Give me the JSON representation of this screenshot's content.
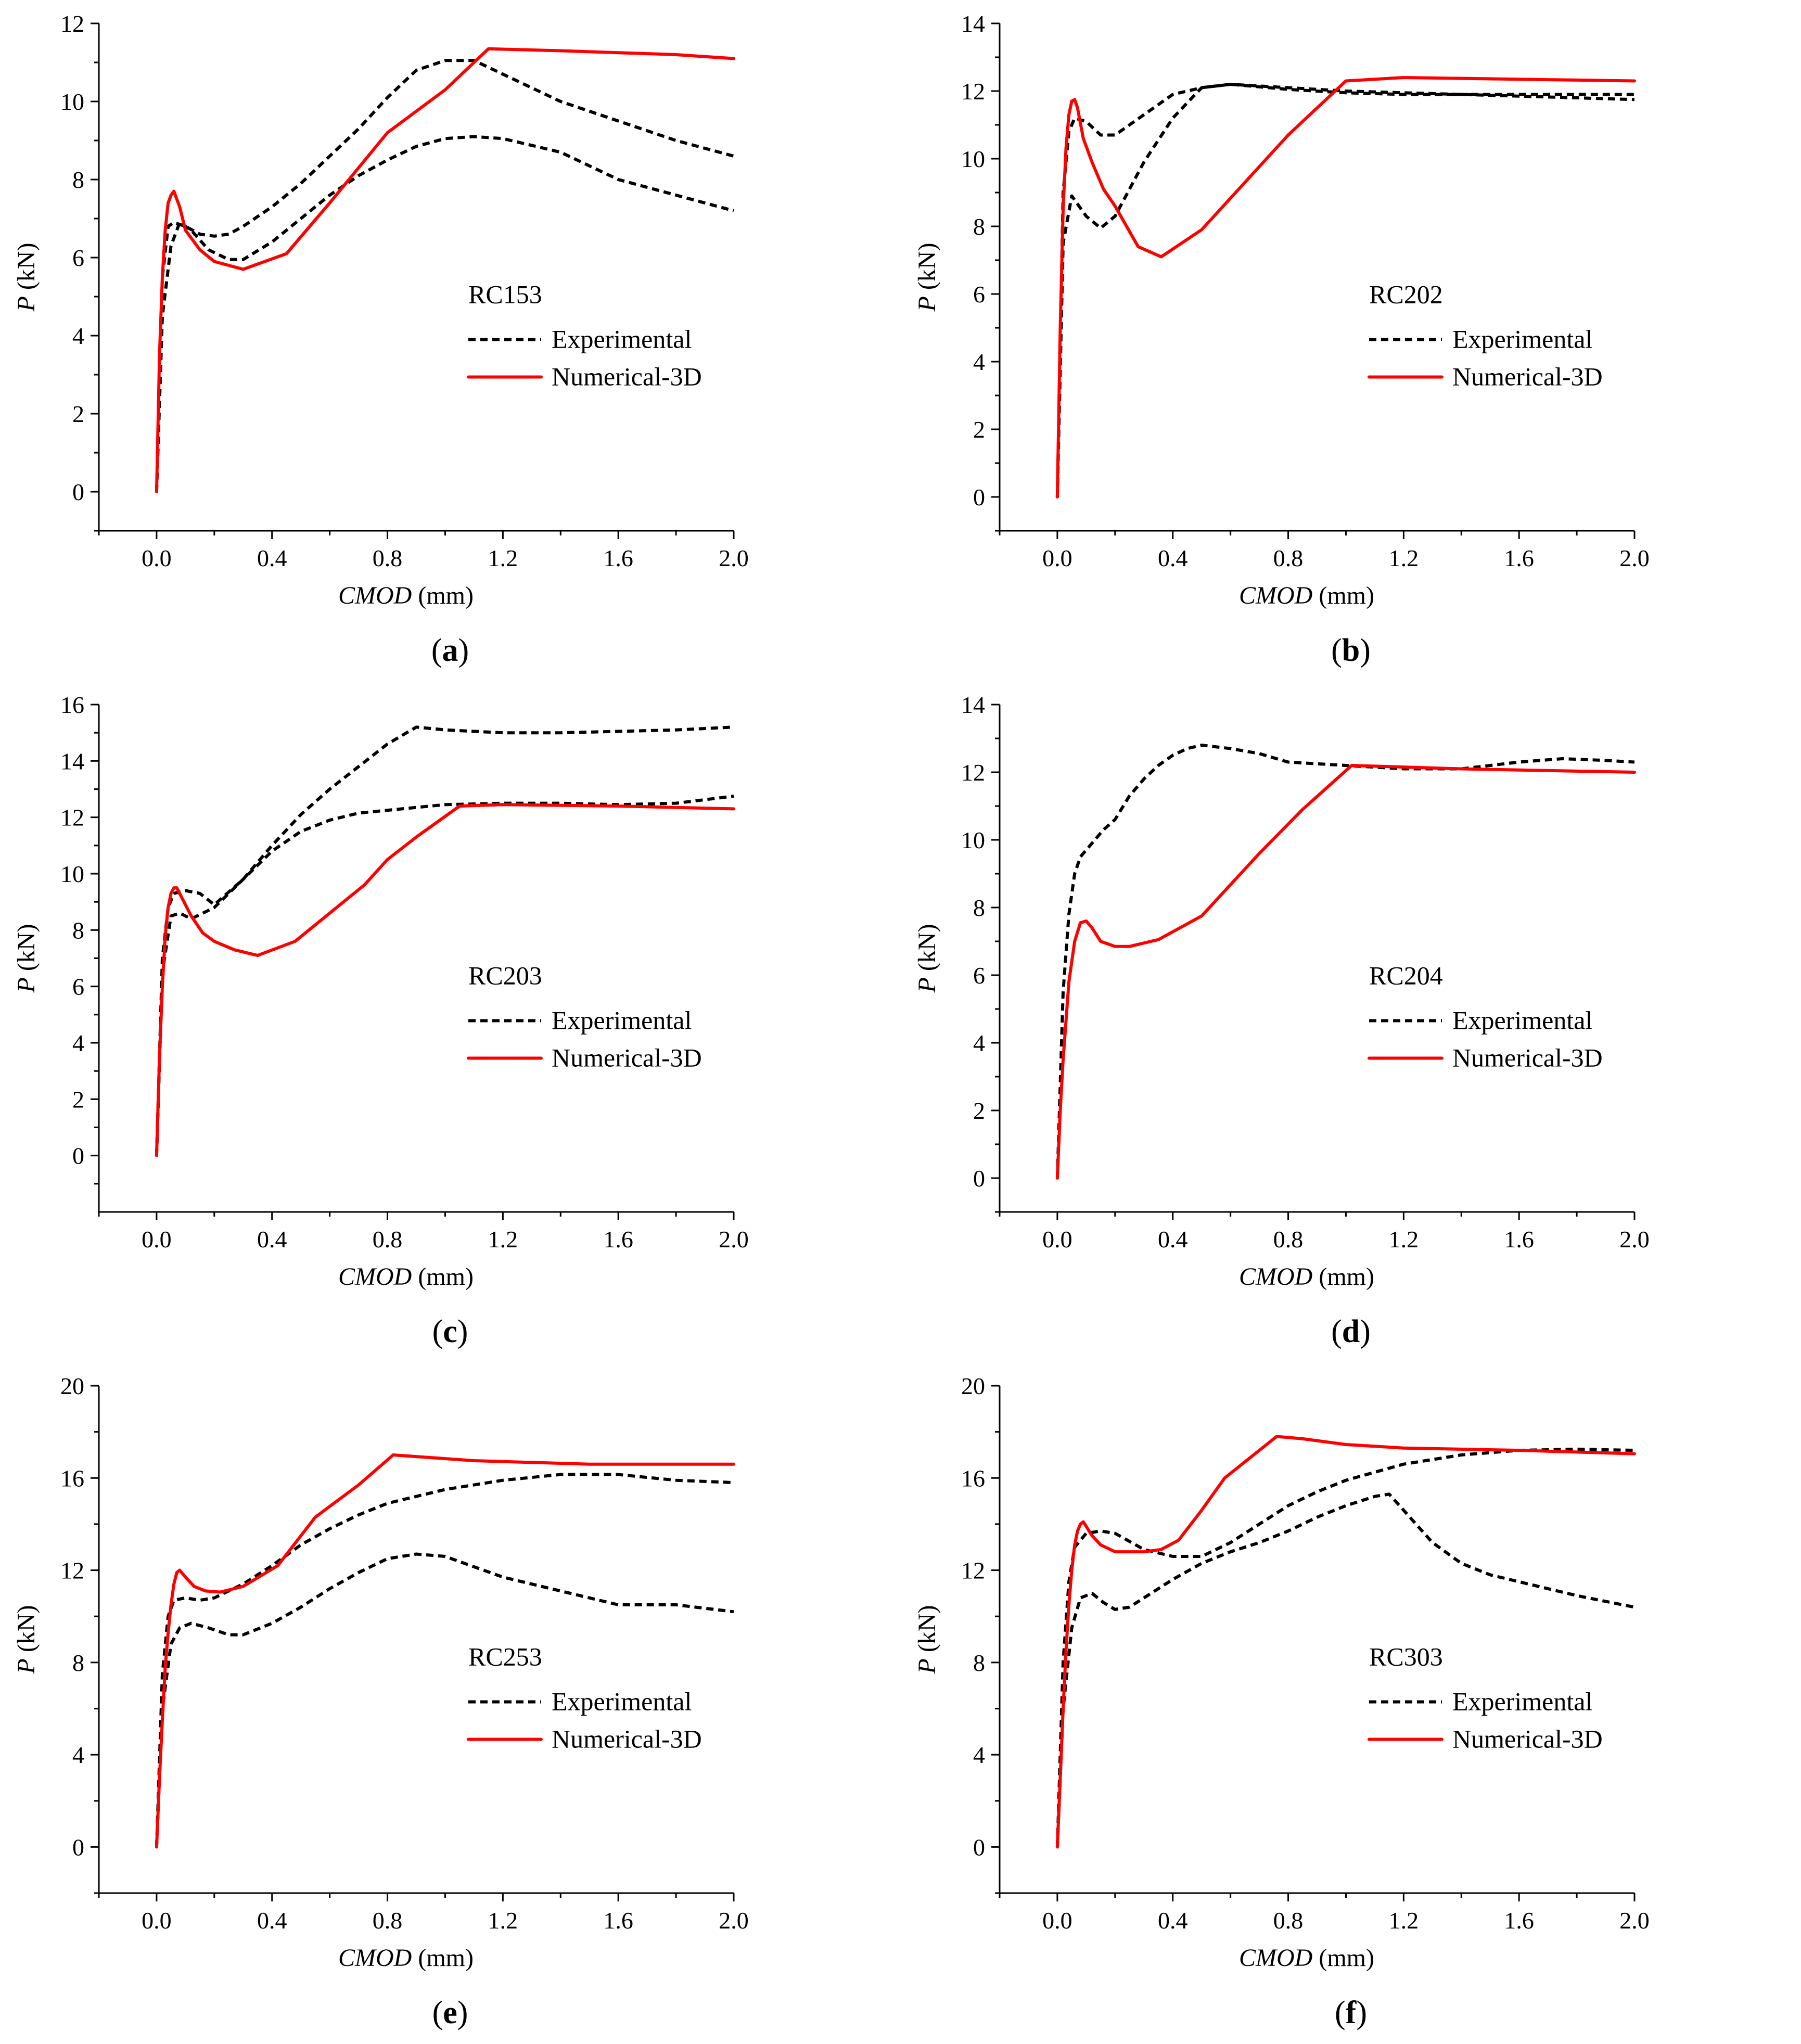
{
  "common": {
    "xlabel_italic": "CMOD",
    "xlabel_unit": " (mm)",
    "ylabel_italic": "P",
    "ylabel_unit": " (kN)",
    "legend_experimental": "Experimental",
    "legend_numerical": "Numerical-3D",
    "x_ticks": [
      "0.0",
      "0.4",
      "0.8",
      "1.2",
      "1.6",
      "2.0"
    ],
    "colors": {
      "experimental": "#000000",
      "numerical": "#ff0000"
    }
  },
  "panels": [
    {
      "caption_open": "(",
      "caption_letter": "a",
      "caption_close": ")"
    },
    {
      "caption_open": "(",
      "caption_letter": "b",
      "caption_close": ")"
    },
    {
      "caption_open": "(",
      "caption_letter": "c",
      "caption_close": ")"
    },
    {
      "caption_open": "(",
      "caption_letter": "d",
      "caption_close": ")"
    },
    {
      "caption_open": "(",
      "caption_letter": "e",
      "caption_close": ")"
    },
    {
      "caption_open": "(",
      "caption_letter": "f",
      "caption_close": ")"
    }
  ],
  "chart_data": [
    {
      "type": "line",
      "title": "RC153",
      "xlabel": "CMOD (mm)",
      "ylabel": "P (kN)",
      "xlim": [
        -0.2,
        2.0
      ],
      "ylim": [
        -1,
        12
      ],
      "y_ticks": [
        0,
        2,
        4,
        6,
        8,
        10,
        12
      ],
      "legend_placement": "center-right",
      "series": [
        {
          "name": "Experimental",
          "style": "dashed",
          "color": "#000000",
          "x": [
            0,
            0.02,
            0.04,
            0.06,
            0.1,
            0.15,
            0.2,
            0.25,
            0.3,
            0.4,
            0.5,
            0.6,
            0.7,
            0.8,
            0.9,
            1.0,
            1.1,
            1.2,
            1.4,
            1.6,
            1.8,
            2.0
          ],
          "y": [
            0,
            5.5,
            6.8,
            6.9,
            6.8,
            6.6,
            6.55,
            6.6,
            6.8,
            7.3,
            7.9,
            8.6,
            9.3,
            10.1,
            10.8,
            11.05,
            11.05,
            10.7,
            10.0,
            9.5,
            9.0,
            8.6
          ]
        },
        {
          "name": "Experimental",
          "style": "dashed",
          "color": "#000000",
          "x": [
            0,
            0.02,
            0.05,
            0.08,
            0.12,
            0.18,
            0.25,
            0.3,
            0.4,
            0.5,
            0.6,
            0.7,
            0.8,
            0.9,
            1.0,
            1.1,
            1.2,
            1.4,
            1.6,
            1.8,
            2.0
          ],
          "y": [
            0,
            4.5,
            6.3,
            6.9,
            6.7,
            6.2,
            5.95,
            5.95,
            6.4,
            7.0,
            7.6,
            8.1,
            8.5,
            8.85,
            9.05,
            9.1,
            9.05,
            8.7,
            8.0,
            7.6,
            7.2
          ]
        },
        {
          "name": "Numerical-3D",
          "style": "solid",
          "color": "#ff0000",
          "x": [
            0,
            0.01,
            0.02,
            0.03,
            0.04,
            0.05,
            0.06,
            0.07,
            0.08,
            0.1,
            0.15,
            0.2,
            0.3,
            0.45,
            0.6,
            0.8,
            1.0,
            1.15,
            1.4,
            1.8,
            2.0
          ],
          "y": [
            0,
            3.5,
            5.5,
            6.7,
            7.4,
            7.6,
            7.7,
            7.5,
            7.3,
            6.7,
            6.2,
            5.9,
            5.7,
            6.1,
            7.4,
            9.2,
            10.3,
            11.35,
            11.3,
            11.2,
            11.1
          ]
        }
      ]
    },
    {
      "type": "line",
      "title": "RC202",
      "xlabel": "CMOD (mm)",
      "ylabel": "P (kN)",
      "xlim": [
        -0.2,
        2.0
      ],
      "ylim": [
        -1,
        14
      ],
      "y_ticks": [
        0,
        2,
        4,
        6,
        8,
        10,
        12,
        14
      ],
      "legend_placement": "center-right",
      "series": [
        {
          "name": "Experimental",
          "style": "dashed",
          "color": "#000000",
          "x": [
            0,
            0.02,
            0.04,
            0.06,
            0.1,
            0.15,
            0.2,
            0.3,
            0.4,
            0.5,
            0.6,
            0.8,
            1.0,
            1.2,
            1.4,
            1.6,
            1.8,
            2.0
          ],
          "y": [
            0,
            9.0,
            10.8,
            11.2,
            11.1,
            10.7,
            10.7,
            11.3,
            11.9,
            12.1,
            12.2,
            12.1,
            12.0,
            11.95,
            11.9,
            11.85,
            11.8,
            11.75
          ]
        },
        {
          "name": "Experimental",
          "style": "dashed",
          "color": "#000000",
          "x": [
            0,
            0.02,
            0.05,
            0.1,
            0.15,
            0.2,
            0.3,
            0.4,
            0.5,
            0.6,
            0.8,
            1.0,
            1.2,
            1.4,
            1.6,
            1.8,
            2.0
          ],
          "y": [
            0,
            7.5,
            8.9,
            8.3,
            7.95,
            8.3,
            9.9,
            11.2,
            12.1,
            12.2,
            12.05,
            11.95,
            11.9,
            11.9,
            11.9,
            11.9,
            11.9
          ]
        },
        {
          "name": "Numerical-3D",
          "style": "solid",
          "color": "#ff0000",
          "x": [
            0,
            0.01,
            0.02,
            0.03,
            0.04,
            0.05,
            0.06,
            0.07,
            0.09,
            0.12,
            0.16,
            0.2,
            0.28,
            0.36,
            0.5,
            0.65,
            0.8,
            1.0,
            1.2,
            1.6,
            2.0
          ],
          "y": [
            0,
            5.0,
            8.5,
            10.3,
            11.3,
            11.7,
            11.75,
            11.5,
            10.6,
            9.9,
            9.1,
            8.6,
            7.4,
            7.1,
            7.9,
            9.3,
            10.7,
            12.3,
            12.4,
            12.35,
            12.3
          ]
        }
      ]
    },
    {
      "type": "line",
      "title": "RC203",
      "xlabel": "CMOD (mm)",
      "ylabel": "P (kN)",
      "xlim": [
        -0.2,
        2.0
      ],
      "ylim": [
        -2,
        16
      ],
      "y_ticks": [
        0,
        2,
        4,
        6,
        8,
        10,
        12,
        14,
        16
      ],
      "legend_placement": "center-right",
      "series": [
        {
          "name": "Experimental",
          "style": "dashed",
          "color": "#000000",
          "x": [
            0,
            0.02,
            0.04,
            0.06,
            0.1,
            0.15,
            0.2,
            0.3,
            0.4,
            0.5,
            0.6,
            0.7,
            0.8,
            0.9,
            1.0,
            1.2,
            1.4,
            1.6,
            1.8,
            2.0
          ],
          "y": [
            0,
            7.0,
            8.8,
            9.3,
            9.4,
            9.3,
            8.9,
            9.8,
            11.0,
            12.1,
            13.0,
            13.8,
            14.6,
            15.2,
            15.1,
            15.0,
            15.0,
            15.05,
            15.1,
            15.2
          ]
        },
        {
          "name": "Experimental",
          "style": "dashed",
          "color": "#000000",
          "x": [
            0,
            0.02,
            0.05,
            0.08,
            0.12,
            0.2,
            0.3,
            0.4,
            0.5,
            0.6,
            0.7,
            0.8,
            0.9,
            1.0,
            1.2,
            1.4,
            1.6,
            1.8,
            2.0
          ],
          "y": [
            0,
            6.5,
            8.5,
            8.6,
            8.4,
            8.8,
            9.8,
            10.8,
            11.5,
            11.9,
            12.15,
            12.25,
            12.35,
            12.45,
            12.5,
            12.5,
            12.45,
            12.5,
            12.75
          ]
        },
        {
          "name": "Numerical-3D",
          "style": "solid",
          "color": "#ff0000",
          "x": [
            0,
            0.01,
            0.02,
            0.03,
            0.04,
            0.05,
            0.06,
            0.07,
            0.09,
            0.12,
            0.16,
            0.2,
            0.27,
            0.35,
            0.48,
            0.6,
            0.72,
            0.8,
            0.9,
            1.05,
            1.2,
            1.6,
            2.0
          ],
          "y": [
            0,
            3.5,
            6.0,
            7.8,
            8.8,
            9.3,
            9.5,
            9.5,
            9.1,
            8.5,
            7.9,
            7.6,
            7.3,
            7.1,
            7.6,
            8.6,
            9.6,
            10.5,
            11.3,
            12.4,
            12.45,
            12.4,
            12.3
          ]
        }
      ]
    },
    {
      "type": "line",
      "title": "RC204",
      "xlabel": "CMOD (mm)",
      "ylabel": "P (kN)",
      "xlim": [
        -0.2,
        2.0
      ],
      "ylim": [
        -1,
        14
      ],
      "y_ticks": [
        0,
        2,
        4,
        6,
        8,
        10,
        12,
        14
      ],
      "legend_placement": "center-right",
      "series": [
        {
          "name": "Experimental",
          "style": "dashed",
          "color": "#000000",
          "x": [
            0,
            0.02,
            0.04,
            0.06,
            0.08,
            0.12,
            0.16,
            0.2,
            0.25,
            0.3,
            0.35,
            0.4,
            0.45,
            0.5,
            0.6,
            0.7,
            0.8,
            1.0,
            1.2,
            1.4,
            1.6,
            1.75,
            1.9,
            2.0
          ],
          "y": [
            0,
            5.5,
            7.8,
            9.0,
            9.5,
            9.9,
            10.3,
            10.6,
            11.3,
            11.8,
            12.2,
            12.5,
            12.7,
            12.8,
            12.7,
            12.55,
            12.3,
            12.2,
            12.1,
            12.1,
            12.3,
            12.4,
            12.35,
            12.3
          ]
        },
        {
          "name": "Numerical-3D",
          "style": "solid",
          "color": "#ff0000",
          "x": [
            0,
            0.01,
            0.02,
            0.04,
            0.06,
            0.08,
            0.1,
            0.12,
            0.15,
            0.2,
            0.25,
            0.35,
            0.5,
            0.7,
            0.85,
            1.02,
            1.4,
            2.0
          ],
          "y": [
            0,
            2.0,
            3.5,
            5.8,
            7.0,
            7.55,
            7.6,
            7.4,
            7.0,
            6.85,
            6.85,
            7.05,
            7.75,
            9.6,
            10.9,
            12.2,
            12.1,
            12.0
          ]
        }
      ]
    },
    {
      "type": "line",
      "title": "RC253",
      "xlabel": "CMOD (mm)",
      "ylabel": "P (kN)",
      "xlim": [
        -0.2,
        2.0
      ],
      "ylim": [
        -2,
        20
      ],
      "y_ticks": [
        0,
        4,
        8,
        12,
        16,
        20
      ],
      "legend_placement": "center-right",
      "series": [
        {
          "name": "Experimental",
          "style": "dashed",
          "color": "#000000",
          "x": [
            0,
            0.02,
            0.04,
            0.06,
            0.1,
            0.15,
            0.2,
            0.3,
            0.4,
            0.5,
            0.6,
            0.7,
            0.8,
            1.0,
            1.2,
            1.4,
            1.6,
            1.8,
            2.0
          ],
          "y": [
            0,
            7.5,
            10.0,
            10.7,
            10.8,
            10.7,
            10.8,
            11.4,
            12.2,
            13.1,
            13.8,
            14.4,
            14.9,
            15.5,
            15.9,
            16.15,
            16.15,
            15.9,
            15.8
          ]
        },
        {
          "name": "Experimental",
          "style": "dashed",
          "color": "#000000",
          "x": [
            0,
            0.02,
            0.05,
            0.08,
            0.12,
            0.18,
            0.25,
            0.3,
            0.4,
            0.5,
            0.6,
            0.7,
            0.8,
            0.9,
            1.0,
            1.2,
            1.4,
            1.6,
            1.8,
            2.0
          ],
          "y": [
            0,
            6.0,
            8.8,
            9.5,
            9.7,
            9.5,
            9.2,
            9.2,
            9.7,
            10.4,
            11.2,
            11.9,
            12.5,
            12.7,
            12.6,
            11.7,
            11.1,
            10.5,
            10.5,
            10.2
          ]
        },
        {
          "name": "Numerical-3D",
          "style": "solid",
          "color": "#ff0000",
          "x": [
            0,
            0.01,
            0.02,
            0.03,
            0.04,
            0.05,
            0.06,
            0.07,
            0.08,
            0.1,
            0.13,
            0.17,
            0.22,
            0.3,
            0.42,
            0.55,
            0.7,
            0.82,
            1.1,
            1.5,
            2.0
          ],
          "y": [
            0,
            3.0,
            5.5,
            7.8,
            9.3,
            10.5,
            11.4,
            11.9,
            12.0,
            11.7,
            11.3,
            11.1,
            11.05,
            11.3,
            12.2,
            14.3,
            15.7,
            17.0,
            16.75,
            16.6,
            16.6
          ]
        }
      ]
    },
    {
      "type": "line",
      "title": "RC303",
      "xlabel": "CMOD (mm)",
      "ylabel": "P (kN)",
      "xlim": [
        -0.2,
        2.0
      ],
      "ylim": [
        -2,
        20
      ],
      "y_ticks": [
        0,
        4,
        8,
        12,
        16,
        20
      ],
      "legend_placement": "center-right",
      "series": [
        {
          "name": "Experimental",
          "style": "dashed",
          "color": "#000000",
          "x": [
            0,
            0.02,
            0.04,
            0.06,
            0.1,
            0.15,
            0.2,
            0.3,
            0.4,
            0.5,
            0.6,
            0.7,
            0.8,
            0.9,
            1.0,
            1.2,
            1.4,
            1.6,
            1.8,
            2.0
          ],
          "y": [
            0,
            8.0,
            11.5,
            13.0,
            13.6,
            13.7,
            13.6,
            12.9,
            12.6,
            12.6,
            13.2,
            14.0,
            14.8,
            15.4,
            15.9,
            16.6,
            17.0,
            17.2,
            17.25,
            17.2
          ]
        },
        {
          "name": "Experimental",
          "style": "dashed",
          "color": "#000000",
          "x": [
            0,
            0.02,
            0.05,
            0.08,
            0.12,
            0.16,
            0.2,
            0.25,
            0.3,
            0.4,
            0.5,
            0.6,
            0.7,
            0.8,
            0.9,
            1.0,
            1.1,
            1.15,
            1.2,
            1.3,
            1.4,
            1.5,
            1.6,
            1.8,
            2.0
          ],
          "y": [
            0,
            6.0,
            9.5,
            10.8,
            11.0,
            10.6,
            10.3,
            10.4,
            10.8,
            11.6,
            12.3,
            12.8,
            13.2,
            13.7,
            14.3,
            14.8,
            15.2,
            15.3,
            14.6,
            13.2,
            12.3,
            11.8,
            11.5,
            10.9,
            10.4
          ]
        },
        {
          "name": "Numerical-3D",
          "style": "solid",
          "color": "#ff0000",
          "x": [
            0,
            0.01,
            0.02,
            0.03,
            0.04,
            0.05,
            0.06,
            0.07,
            0.08,
            0.09,
            0.1,
            0.12,
            0.15,
            0.2,
            0.3,
            0.36,
            0.42,
            0.5,
            0.58,
            0.68,
            0.76,
            0.85,
            1.0,
            1.2,
            1.6,
            2.0
          ],
          "y": [
            0,
            3.0,
            6.0,
            8.5,
            10.5,
            12.0,
            13.1,
            13.7,
            14.0,
            14.1,
            13.9,
            13.5,
            13.1,
            12.8,
            12.8,
            12.9,
            13.3,
            14.6,
            16.0,
            17.0,
            17.8,
            17.7,
            17.45,
            17.3,
            17.2,
            17.05
          ]
        }
      ]
    }
  ]
}
